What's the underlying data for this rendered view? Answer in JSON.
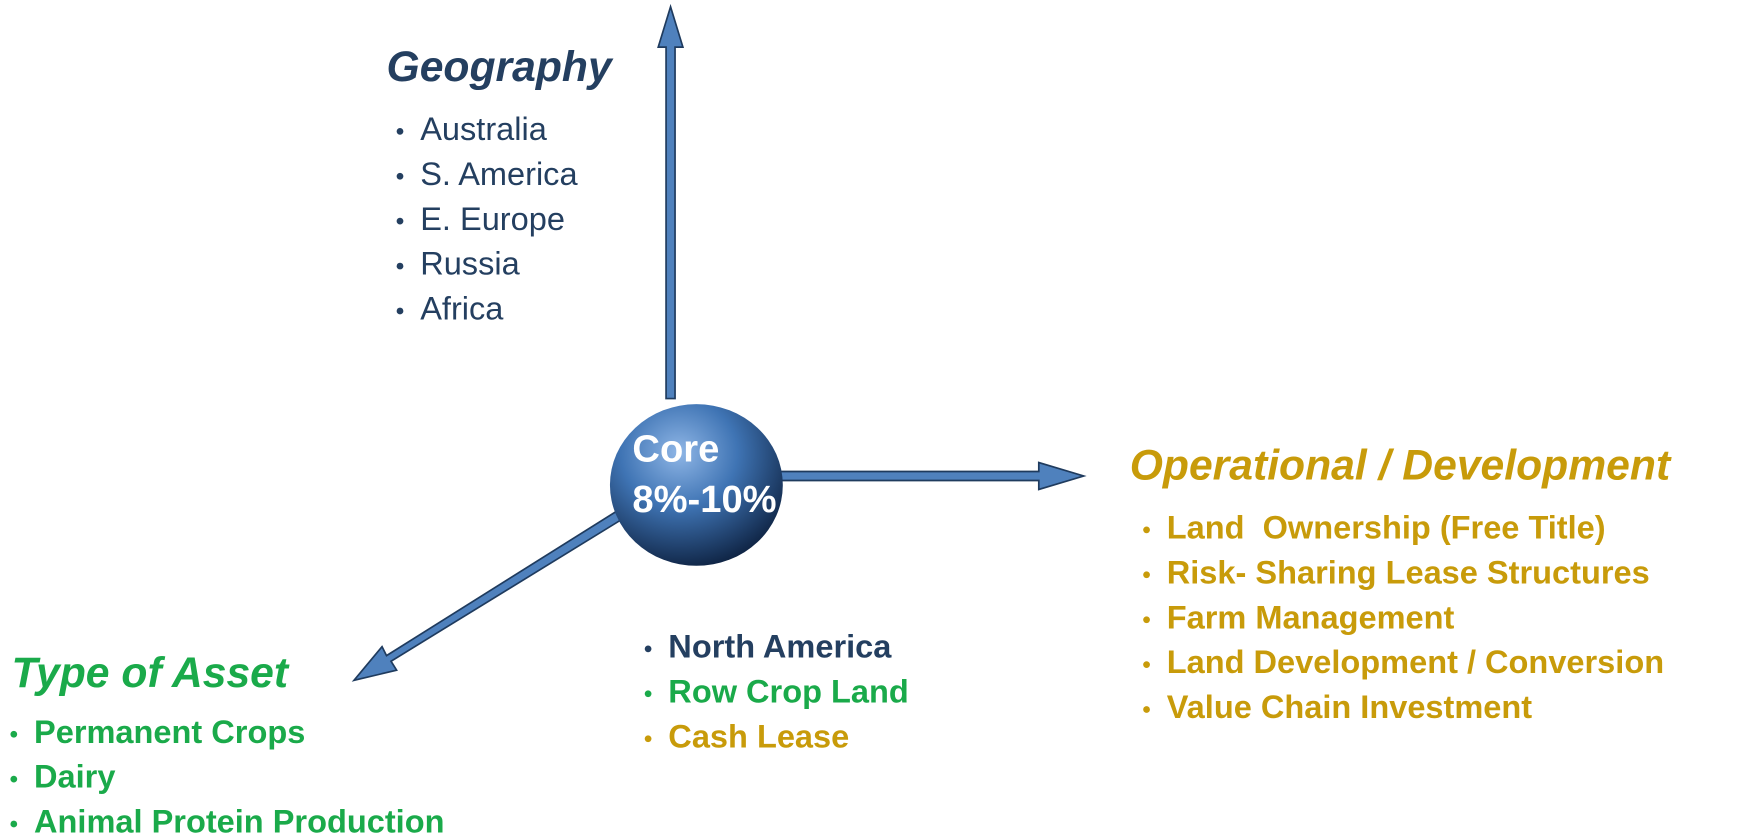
{
  "center": {
    "lines": [
      "Core",
      "8%-10%"
    ]
  },
  "geography": {
    "title": "Geography",
    "items": [
      "Australia",
      "S. America",
      "E. Europe",
      "Russia",
      "Africa"
    ]
  },
  "operational": {
    "title": "Operational / Development",
    "items": [
      "Land  Ownership (Free Title)",
      "Risk- Sharing Lease Structures",
      "Farm Management",
      "Land Development / Conversion",
      "Value Chain Investment"
    ]
  },
  "asset": {
    "title": "Type of Asset",
    "items": [
      "Permanent Crops",
      "Dairy",
      "Animal Protein Production"
    ]
  },
  "core": {
    "items": [
      "North America",
      "Row Crop Land",
      "Cash Lease"
    ]
  }
}
